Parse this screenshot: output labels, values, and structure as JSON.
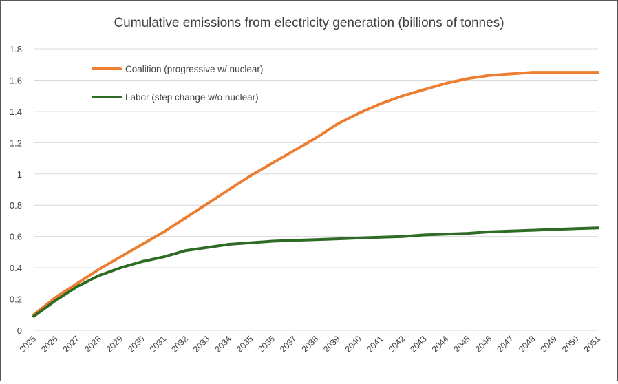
{
  "chart_data": {
    "type": "line",
    "title": "Cumulative emissions from electricity generation (billions of tonnes)",
    "xlabel": "",
    "ylabel": "",
    "ylim": [
      0,
      1.8
    ],
    "yticks": [
      "0",
      "0.2",
      "0.4",
      "0.6",
      "0.8",
      "1",
      "1.2",
      "1.4",
      "1.6",
      "1.8"
    ],
    "ytick_values": [
      0,
      0.2,
      0.4,
      0.6,
      0.8,
      1.0,
      1.2,
      1.4,
      1.6,
      1.8
    ],
    "grid": true,
    "legend_position": "top-left",
    "categories": [
      "2025",
      "2026",
      "2027",
      "2028",
      "2029",
      "2030",
      "2031",
      "2032",
      "2033",
      "2034",
      "2035",
      "2036",
      "2037",
      "2038",
      "2039",
      "2040",
      "2041",
      "2042",
      "2043",
      "2044",
      "2045",
      "2046",
      "2047",
      "2048",
      "2049",
      "2050",
      "2051"
    ],
    "series": [
      {
        "name": "Coalition (progressive w/ nuclear)",
        "color": "#ed7d31",
        "values": [
          0.1,
          0.21,
          0.3,
          0.39,
          0.47,
          0.55,
          0.63,
          0.72,
          0.81,
          0.9,
          0.99,
          1.07,
          1.15,
          1.23,
          1.32,
          1.39,
          1.45,
          1.5,
          1.54,
          1.58,
          1.61,
          1.63,
          1.64,
          1.65,
          1.65,
          1.65,
          1.65
        ]
      },
      {
        "name": "Labor (step change w/o nuclear)",
        "color": "#2e6b24",
        "values": [
          0.09,
          0.19,
          0.28,
          0.35,
          0.4,
          0.44,
          0.47,
          0.51,
          0.53,
          0.55,
          0.56,
          0.57,
          0.575,
          0.58,
          0.585,
          0.59,
          0.595,
          0.6,
          0.61,
          0.615,
          0.62,
          0.63,
          0.635,
          0.64,
          0.645,
          0.65,
          0.655
        ]
      }
    ]
  }
}
